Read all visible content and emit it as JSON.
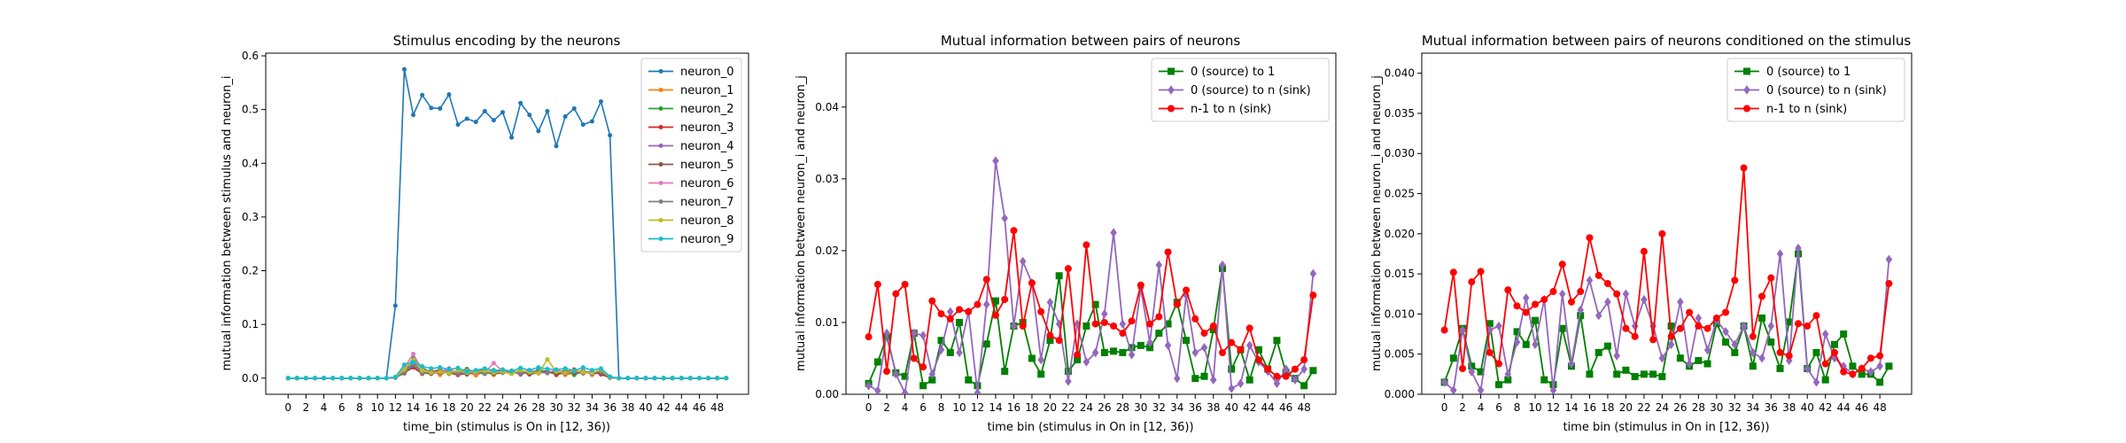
{
  "chart_data": [
    {
      "type": "line",
      "title": "Stimulus encoding by the neurons",
      "xlabel": "time_bin (stimulus is On in [12, 36))",
      "ylabel": "mutual information between stimulus and neuron_i",
      "xlim": [
        -2.5,
        51.5
      ],
      "ylim": [
        -0.03,
        0.605
      ],
      "xticks": [
        0,
        2,
        4,
        6,
        8,
        10,
        12,
        14,
        16,
        18,
        20,
        22,
        24,
        26,
        28,
        30,
        32,
        34,
        36,
        38,
        40,
        42,
        44,
        46,
        48
      ],
      "yticks": [
        0.0,
        0.1,
        0.2,
        0.3,
        0.4,
        0.5,
        0.6
      ],
      "y_decimals": 1,
      "legend_position": "top-right",
      "series": [
        {
          "name": "neuron_0",
          "color": "#1f77b4",
          "marker": "dot",
          "values": [
            0,
            0,
            0,
            0,
            0,
            0,
            0,
            0,
            0,
            0,
            0,
            0,
            0.135,
            0.575,
            0.49,
            0.527,
            0.503,
            0.502,
            0.528,
            0.472,
            0.483,
            0.477,
            0.497,
            0.48,
            0.495,
            0.448,
            0.512,
            0.49,
            0.46,
            0.497,
            0.432,
            0.487,
            0.502,
            0.472,
            0.478,
            0.515,
            0.452,
            0,
            0,
            0,
            0,
            0,
            0,
            0,
            0,
            0,
            0,
            0,
            0,
            0
          ]
        },
        {
          "name": "neuron_1",
          "color": "#ff7f0e",
          "marker": "dot",
          "values": [
            0,
            0,
            0,
            0,
            0,
            0,
            0,
            0,
            0,
            0,
            0,
            0,
            0.002,
            0.018,
            0.032,
            0.012,
            0.015,
            0.006,
            0.014,
            0.01,
            0.012,
            0.005,
            0.013,
            0.006,
            0.015,
            0.008,
            0.016,
            0.007,
            0.012,
            0.01,
            0.014,
            0.006,
            0.01,
            0.015,
            0.006,
            0.012,
            0.002,
            0,
            0,
            0,
            0,
            0,
            0,
            0,
            0,
            0,
            0,
            0,
            0,
            0
          ]
        },
        {
          "name": "neuron_2",
          "color": "#2ca02c",
          "marker": "dot",
          "values": [
            0,
            0,
            0,
            0,
            0,
            0,
            0,
            0,
            0,
            0,
            0,
            0,
            0.001,
            0.012,
            0.038,
            0.02,
            0.01,
            0.016,
            0.008,
            0.012,
            0.017,
            0.01,
            0.008,
            0.015,
            0.012,
            0.01,
            0.014,
            0.008,
            0.016,
            0.012,
            0.01,
            0.015,
            0.006,
            0.013,
            0.01,
            0.008,
            0.001,
            0,
            0,
            0,
            0,
            0,
            0,
            0,
            0,
            0,
            0,
            0,
            0,
            0
          ]
        },
        {
          "name": "neuron_3",
          "color": "#d62728",
          "marker": "dot",
          "values": [
            0,
            0,
            0,
            0,
            0,
            0,
            0,
            0,
            0,
            0,
            0,
            0,
            0.002,
            0.01,
            0.02,
            0.008,
            0.012,
            0.015,
            0.01,
            0.006,
            0.009,
            0.012,
            0.016,
            0.008,
            0.01,
            0.013,
            0.007,
            0.012,
            0.009,
            0.014,
            0.006,
            0.011,
            0.016,
            0.009,
            0.013,
            0.007,
            0.001,
            0,
            0,
            0,
            0,
            0,
            0,
            0,
            0,
            0,
            0,
            0,
            0,
            0
          ]
        },
        {
          "name": "neuron_4",
          "color": "#9467bd",
          "marker": "dot",
          "values": [
            0,
            0,
            0,
            0,
            0,
            0,
            0,
            0,
            0,
            0,
            0,
            0,
            0.001,
            0.014,
            0.028,
            0.012,
            0.009,
            0.011,
            0.018,
            0.008,
            0.012,
            0.01,
            0.013,
            0.009,
            0.016,
            0.011,
            0.008,
            0.014,
            0.012,
            0.01,
            0.015,
            0.009,
            0.011,
            0.013,
            0.008,
            0.012,
            0.002,
            0,
            0,
            0,
            0,
            0,
            0,
            0,
            0,
            0,
            0,
            0,
            0,
            0
          ]
        },
        {
          "name": "neuron_5",
          "color": "#8c564b",
          "marker": "dot",
          "values": [
            0,
            0,
            0,
            0,
            0,
            0,
            0,
            0,
            0,
            0,
            0,
            0,
            0.001,
            0.009,
            0.022,
            0.01,
            0.008,
            0.013,
            0.009,
            0.011,
            0.007,
            0.012,
            0.01,
            0.008,
            0.011,
            0.009,
            0.012,
            0.007,
            0.01,
            0.011,
            0.008,
            0.012,
            0.009,
            0.01,
            0.011,
            0.009,
            0.001,
            0,
            0,
            0,
            0,
            0,
            0,
            0,
            0,
            0,
            0,
            0,
            0,
            0
          ]
        },
        {
          "name": "neuron_6",
          "color": "#e377c2",
          "marker": "dot",
          "values": [
            0,
            0,
            0,
            0,
            0,
            0,
            0,
            0,
            0,
            0,
            0,
            0,
            0.002,
            0.02,
            0.045,
            0.015,
            0.012,
            0.01,
            0.016,
            0.009,
            0.014,
            0.011,
            0.01,
            0.028,
            0.013,
            0.012,
            0.01,
            0.015,
            0.011,
            0.009,
            0.016,
            0.01,
            0.013,
            0.012,
            0.01,
            0.014,
            0.002,
            0,
            0,
            0,
            0,
            0,
            0,
            0,
            0,
            0,
            0,
            0,
            0,
            0
          ]
        },
        {
          "name": "neuron_7",
          "color": "#7f7f7f",
          "marker": "dot",
          "values": [
            0,
            0,
            0,
            0,
            0,
            0,
            0,
            0,
            0,
            0,
            0,
            0,
            0.001,
            0.011,
            0.025,
            0.009,
            0.013,
            0.01,
            0.012,
            0.008,
            0.011,
            0.013,
            0.009,
            0.012,
            0.01,
            0.014,
            0.009,
            0.011,
            0.012,
            0.01,
            0.013,
            0.009,
            0.012,
            0.01,
            0.011,
            0.012,
            0.001,
            0,
            0,
            0,
            0,
            0,
            0,
            0,
            0,
            0,
            0,
            0,
            0,
            0
          ]
        },
        {
          "name": "neuron_8",
          "color": "#bcbd22",
          "marker": "dot",
          "values": [
            0,
            0,
            0,
            0,
            0,
            0,
            0,
            0,
            0,
            0,
            0,
            0,
            0.002,
            0.016,
            0.034,
            0.014,
            0.01,
            0.012,
            0.009,
            0.015,
            0.01,
            0.012,
            0.014,
            0.01,
            0.012,
            0.008,
            0.015,
            0.011,
            0.009,
            0.035,
            0.012,
            0.01,
            0.014,
            0.011,
            0.01,
            0.016,
            0.002,
            0,
            0,
            0,
            0,
            0,
            0,
            0,
            0,
            0,
            0,
            0,
            0,
            0
          ]
        },
        {
          "name": "neuron_9",
          "color": "#17becf",
          "marker": "dot",
          "values": [
            0,
            0,
            0,
            0,
            0,
            0,
            0,
            0,
            0,
            0,
            0,
            0,
            0.002,
            0.025,
            0.03,
            0.022,
            0.018,
            0.02,
            0.016,
            0.019,
            0.012,
            0.015,
            0.018,
            0.014,
            0.016,
            0.013,
            0.019,
            0.015,
            0.02,
            0.017,
            0.016,
            0.018,
            0.014,
            0.02,
            0.015,
            0.018,
            0.003,
            0,
            0,
            0,
            0,
            0,
            0,
            0,
            0,
            0,
            0,
            0,
            0,
            0
          ]
        }
      ]
    },
    {
      "type": "line",
      "title": "Mutual information between pairs of neurons",
      "xlabel": "time bin (stimulus in On in [12, 36))",
      "ylabel": "mutual information between neuron_i and neuron_j",
      "xlim": [
        -2.5,
        51.5
      ],
      "ylim": [
        0,
        0.0475
      ],
      "xticks": [
        0,
        2,
        4,
        6,
        8,
        10,
        12,
        14,
        16,
        18,
        20,
        22,
        24,
        26,
        28,
        30,
        32,
        34,
        36,
        38,
        40,
        42,
        44,
        46,
        48
      ],
      "yticks": [
        0.0,
        0.01,
        0.02,
        0.03,
        0.04
      ],
      "y_decimals": 2,
      "legend_position": "top-right",
      "series": [
        {
          "name": "0 (source) to 1",
          "color": "#008000",
          "marker": "square",
          "values": [
            0.0015,
            0.0045,
            0.008,
            0.003,
            0.0025,
            0.0085,
            0.0012,
            0.002,
            0.0075,
            0.0058,
            0.01,
            0.002,
            0.0012,
            0.007,
            0.013,
            0.0032,
            0.0095,
            0.01,
            0.005,
            0.0028,
            0.0075,
            0.0165,
            0.0032,
            0.0048,
            0.0095,
            0.0125,
            0.0058,
            0.006,
            0.0058,
            0.0065,
            0.0068,
            0.0065,
            0.0085,
            0.0098,
            0.0128,
            0.0075,
            0.0022,
            0.0025,
            0.009,
            0.0175,
            0.0035,
            0.0062,
            0.002,
            0.0062,
            0.0035,
            0.0075,
            0.003,
            0.0022,
            0.0012,
            0.0033
          ]
        },
        {
          "name": "0 (source) to n (sink)",
          "color": "#9467bd",
          "marker": "diamond",
          "values": [
            0.0012,
            0.0005,
            0.0085,
            0.0028,
            0.0002,
            0.0085,
            0.0082,
            0.0028,
            0.0062,
            0.0115,
            0.0058,
            0.0115,
            0.0002,
            0.0125,
            0.0325,
            0.0245,
            0.0095,
            0.0185,
            0.0155,
            0.0048,
            0.0128,
            0.0098,
            0.0018,
            0.0098,
            0.0045,
            0.0058,
            0.0112,
            0.0225,
            0.0098,
            0.0055,
            0.0148,
            0.0072,
            0.018,
            0.0068,
            0.0022,
            0.0138,
            0.0058,
            0.0065,
            0.002,
            0.018,
            0.0008,
            0.0015,
            0.0068,
            0.0045,
            0.0032,
            0.0015,
            0.0035,
            0.002,
            0.0035,
            0.0168
          ]
        },
        {
          "name": "n-1 to n (sink)",
          "color": "#ff0000",
          "marker": "dot",
          "values": [
            0.008,
            0.0153,
            0.0032,
            0.014,
            0.0153,
            0.005,
            0.0038,
            0.013,
            0.0112,
            0.0105,
            0.0118,
            0.0115,
            0.0125,
            0.016,
            0.011,
            0.0132,
            0.0228,
            0.0095,
            0.0155,
            0.0115,
            0.0082,
            0.0075,
            0.0175,
            0.0055,
            0.0208,
            0.0098,
            0.01,
            0.0095,
            0.0085,
            0.0102,
            0.0152,
            0.0098,
            0.0108,
            0.0198,
            0.0125,
            0.0145,
            0.0105,
            0.0085,
            0.0095,
            0.0058,
            0.0072,
            0.0062,
            0.0092,
            0.0048,
            0.0035,
            0.0025,
            0.0025,
            0.0035,
            0.0048,
            0.0138
          ]
        }
      ]
    },
    {
      "type": "line",
      "title": "Mutual information between pairs of neurons conditioned on the stimulus",
      "xlabel": "time bin (stimulus in On in [12, 36))",
      "ylabel": "mutual information between neuron_i and neuron_j",
      "xlim": [
        -2.5,
        51.5
      ],
      "ylim": [
        0,
        0.0425
      ],
      "xticks": [
        0,
        2,
        4,
        6,
        8,
        10,
        12,
        14,
        16,
        18,
        20,
        22,
        24,
        26,
        28,
        30,
        32,
        34,
        36,
        38,
        40,
        42,
        44,
        46,
        48
      ],
      "yticks": [
        0.0,
        0.005,
        0.01,
        0.015,
        0.02,
        0.025,
        0.03,
        0.035,
        0.04
      ],
      "y_decimals": 3,
      "legend_position": "top-right",
      "series": [
        {
          "name": "0 (source) to 1",
          "color": "#008000",
          "marker": "square",
          "values": [
            0.0015,
            0.0045,
            0.0082,
            0.0035,
            0.0028,
            0.0088,
            0.0012,
            0.0018,
            0.0078,
            0.0062,
            0.0092,
            0.0018,
            0.0012,
            0.0082,
            0.0035,
            0.0098,
            0.0025,
            0.0052,
            0.006,
            0.0025,
            0.003,
            0.0022,
            0.0025,
            0.0025,
            0.0022,
            0.0085,
            0.0045,
            0.0035,
            0.0042,
            0.0038,
            0.0088,
            0.0065,
            0.0052,
            0.0085,
            0.0035,
            0.0095,
            0.0065,
            0.0032,
            0.009,
            0.0175,
            0.0032,
            0.0052,
            0.0018,
            0.0062,
            0.0075,
            0.0035,
            0.0025,
            0.0025,
            0.0015,
            0.0035
          ]
        },
        {
          "name": "0 (source) to n (sink)",
          "color": "#9467bd",
          "marker": "diamond",
          "values": [
            0.0015,
            0.0005,
            0.008,
            0.0028,
            0.0005,
            0.008,
            0.0085,
            0.0025,
            0.0065,
            0.012,
            0.0062,
            0.0118,
            0.0005,
            0.0125,
            0.0038,
            0.0105,
            0.0142,
            0.0098,
            0.0115,
            0.0048,
            0.0125,
            0.0085,
            0.0118,
            0.0085,
            0.0045,
            0.0062,
            0.0115,
            0.0038,
            0.0095,
            0.0055,
            0.0092,
            0.0078,
            0.0062,
            0.0085,
            0.0052,
            0.0045,
            0.0085,
            0.0175,
            0.0042,
            0.0182,
            0.0032,
            0.0015,
            0.0075,
            0.0045,
            0.0035,
            0.0025,
            0.0032,
            0.0028,
            0.0035,
            0.0168
          ]
        },
        {
          "name": "n-1 to n (sink)",
          "color": "#ff0000",
          "marker": "dot",
          "values": [
            0.008,
            0.0152,
            0.0032,
            0.014,
            0.0153,
            0.0052,
            0.0038,
            0.013,
            0.011,
            0.0102,
            0.0112,
            0.0118,
            0.0128,
            0.0162,
            0.0115,
            0.0128,
            0.0195,
            0.0148,
            0.0138,
            0.0125,
            0.0082,
            0.0072,
            0.0178,
            0.0068,
            0.02,
            0.0072,
            0.0082,
            0.0102,
            0.0085,
            0.0082,
            0.0095,
            0.0102,
            0.0142,
            0.0282,
            0.0072,
            0.0122,
            0.0145,
            0.0052,
            0.0048,
            0.0088,
            0.0085,
            0.0098,
            0.0038,
            0.0052,
            0.0028,
            0.0025,
            0.0032,
            0.0045,
            0.0048,
            0.0138
          ]
        }
      ]
    }
  ]
}
